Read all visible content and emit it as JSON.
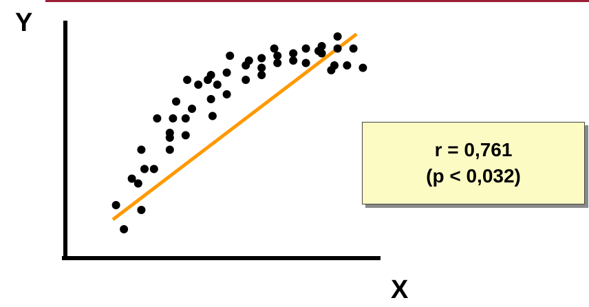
{
  "colors": {
    "accent_rule": "#9a1f35",
    "axis": "#000000",
    "points": "#000000",
    "trend_line": "#ff9900",
    "stats_box_bg": "#fdfbc4"
  },
  "stats_box": {
    "r_text": "r = 0,761",
    "p_text": "(p < 0,032)"
  },
  "chart_data": {
    "type": "scatter",
    "xlabel": "X",
    "ylabel": "Y",
    "tick_labels": false,
    "grid": false,
    "legend": "none",
    "xlim": [
      0,
      100
    ],
    "ylim": [
      0,
      100
    ],
    "points": [
      {
        "x": 16,
        "y": 22
      },
      {
        "x": 18.5,
        "y": 12
      },
      {
        "x": 21,
        "y": 33
      },
      {
        "x": 23,
        "y": 31
      },
      {
        "x": 24,
        "y": 20
      },
      {
        "x": 24,
        "y": 45
      },
      {
        "x": 25,
        "y": 37
      },
      {
        "x": 28,
        "y": 37
      },
      {
        "x": 29,
        "y": 58
      },
      {
        "x": 33,
        "y": 52
      },
      {
        "x": 33,
        "y": 50
      },
      {
        "x": 33,
        "y": 45
      },
      {
        "x": 34,
        "y": 58
      },
      {
        "x": 35,
        "y": 65
      },
      {
        "x": 38,
        "y": 51
      },
      {
        "x": 38,
        "y": 58
      },
      {
        "x": 38.5,
        "y": 74
      },
      {
        "x": 40,
        "y": 62
      },
      {
        "x": 42,
        "y": 72
      },
      {
        "x": 45,
        "y": 74
      },
      {
        "x": 46,
        "y": 66
      },
      {
        "x": 46,
        "y": 76
      },
      {
        "x": 46.5,
        "y": 59
      },
      {
        "x": 48,
        "y": 72
      },
      {
        "x": 51,
        "y": 77
      },
      {
        "x": 51,
        "y": 68
      },
      {
        "x": 52,
        "y": 84
      },
      {
        "x": 57,
        "y": 80
      },
      {
        "x": 57,
        "y": 74
      },
      {
        "x": 58,
        "y": 82
      },
      {
        "x": 62,
        "y": 79
      },
      {
        "x": 62,
        "y": 83
      },
      {
        "x": 62,
        "y": 76
      },
      {
        "x": 66,
        "y": 87
      },
      {
        "x": 67,
        "y": 81
      },
      {
        "x": 67,
        "y": 84
      },
      {
        "x": 72,
        "y": 82
      },
      {
        "x": 72,
        "y": 85
      },
      {
        "x": 76,
        "y": 81
      },
      {
        "x": 76,
        "y": 87
      },
      {
        "x": 80,
        "y": 86
      },
      {
        "x": 81,
        "y": 88
      },
      {
        "x": 81,
        "y": 85
      },
      {
        "x": 84,
        "y": 78
      },
      {
        "x": 85,
        "y": 80
      },
      {
        "x": 86,
        "y": 87
      },
      {
        "x": 86,
        "y": 92
      },
      {
        "x": 89,
        "y": 80
      },
      {
        "x": 91,
        "y": 87
      },
      {
        "x": 94,
        "y": 79
      }
    ],
    "trend_line": [
      {
        "x": 15,
        "y": 16
      },
      {
        "x": 92,
        "y": 93
      }
    ],
    "r": 0.761,
    "p": 0.032
  }
}
